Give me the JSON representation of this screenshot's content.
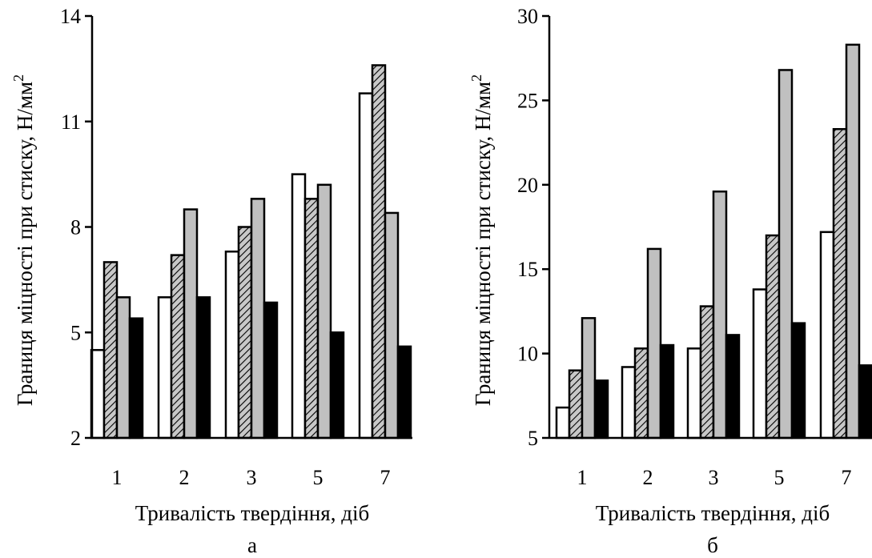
{
  "chart_data": [
    {
      "type": "bar",
      "title": "",
      "xlabel": "Тривалість твердіння, діб",
      "ylabel": "Границя міцності при стиску, Н/мм",
      "ylabel_sup": "2",
      "panel_label": "а",
      "categories": [
        "1",
        "2",
        "3",
        "5",
        "7"
      ],
      "ylim": [
        2,
        14
      ],
      "yticks": [
        "2",
        "5",
        "8",
        "11",
        "14"
      ],
      "series": [
        {
          "values": [
            4.5,
            6.0,
            7.3,
            9.5,
            11.8
          ],
          "fill": "white"
        },
        {
          "values": [
            7.0,
            7.2,
            8.0,
            8.8,
            12.6
          ],
          "fill": "hatched"
        },
        {
          "values": [
            6.0,
            8.5,
            8.8,
            9.2,
            8.4
          ],
          "fill": "gray"
        },
        {
          "values": [
            5.4,
            6.0,
            5.85,
            5.0,
            4.6
          ],
          "fill": "black"
        }
      ],
      "grid": false,
      "legend": "none"
    },
    {
      "type": "bar",
      "title": "",
      "xlabel": "Тривалість твердіння, діб",
      "ylabel": "Границя міцності при стиску, Н/мм",
      "ylabel_sup": "2",
      "panel_label": "б",
      "categories": [
        "1",
        "2",
        "3",
        "5",
        "7"
      ],
      "ylim": [
        5,
        30
      ],
      "yticks": [
        "5",
        "10",
        "15",
        "20",
        "25",
        "30"
      ],
      "series": [
        {
          "values": [
            6.8,
            9.2,
            10.3,
            13.8,
            17.2
          ],
          "fill": "white"
        },
        {
          "values": [
            9.0,
            10.3,
            12.8,
            17.0,
            23.3
          ],
          "fill": "hatched"
        },
        {
          "values": [
            12.1,
            16.2,
            19.6,
            26.8,
            28.3
          ],
          "fill": "gray"
        },
        {
          "values": [
            8.4,
            10.5,
            11.1,
            11.8,
            9.3
          ],
          "fill": "black"
        }
      ],
      "grid": false,
      "legend": "none"
    }
  ],
  "colors": {
    "white_bar": "#ffffff",
    "gray_bar": "#c0c0c0",
    "black_bar": "#000000",
    "hatch_fill": "#c8c8c8",
    "outline": "#000000"
  }
}
